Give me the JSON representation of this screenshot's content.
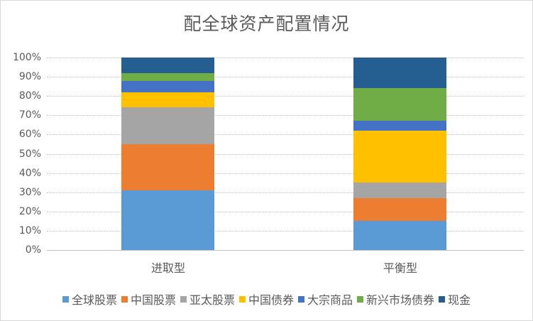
{
  "chart_data": {
    "type": "bar",
    "stacked": "percent",
    "title": "配全球资产配置情况",
    "xlabel": "",
    "ylabel": "",
    "ylim": [
      0,
      100
    ],
    "yticks": [
      "0%",
      "10%",
      "20%",
      "30%",
      "40%",
      "50%",
      "60%",
      "70%",
      "80%",
      "90%",
      "100%"
    ],
    "categories": [
      "进取型",
      "平衡型"
    ],
    "grid": true,
    "legend_position": "bottom",
    "series": [
      {
        "name": "全球股票",
        "color": "#5b9bd5",
        "values": [
          31,
          15
        ]
      },
      {
        "name": "中国股票",
        "color": "#ed7d31",
        "values": [
          24,
          12
        ]
      },
      {
        "name": "亚太股票",
        "color": "#a5a5a5",
        "values": [
          19,
          8
        ]
      },
      {
        "name": "中国债券",
        "color": "#ffc000",
        "values": [
          8,
          27
        ]
      },
      {
        "name": "大宗商品",
        "color": "#4472c4",
        "values": [
          6,
          5
        ]
      },
      {
        "name": "新兴市场债券",
        "color": "#70ad47",
        "values": [
          4,
          17
        ]
      },
      {
        "name": "现金",
        "color": "#255e91",
        "values": [
          8,
          16
        ]
      }
    ]
  }
}
